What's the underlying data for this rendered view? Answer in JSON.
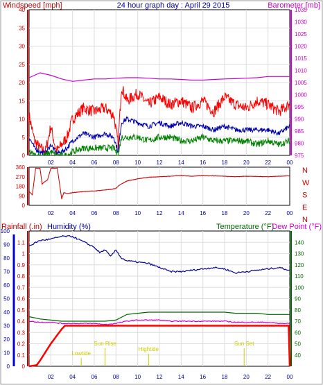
{
  "header": {
    "windspeed_label": "Windspeed [mph]",
    "title": "24 hour graph day : April 29 2015",
    "barometer_label": "Barometer [mb]"
  },
  "panel3": {
    "rainfall_label": "Rainfall (.in)",
    "humidity_label": "Humidity (%)",
    "temperature_label": "Temperature (°F)",
    "dewpoint_label": "Dew Point (°F)"
  },
  "colors": {
    "wind_gust": "#ff0000",
    "wind_avg": "#0000aa",
    "wind_low": "#008000",
    "barometer": "#cc00cc",
    "direction": "#cc0000",
    "humidity": "#000099",
    "temperature": "#006600",
    "dewpoint": "#cc00cc",
    "rainfall": "#ff0000",
    "tide": "#cccc00"
  },
  "chart_data": [
    {
      "name": "wind-barometer",
      "type": "line",
      "xlabel": "",
      "x_ticks": [
        "02",
        "04",
        "06",
        "08",
        "10",
        "12",
        "14",
        "16",
        "18",
        "20",
        "22",
        "00"
      ],
      "y_left": {
        "label": "Windspeed [mph]",
        "ticks": [
          0,
          5,
          10,
          15,
          20,
          25,
          30,
          35,
          40
        ],
        "ylim": [
          0,
          40
        ]
      },
      "y_right": {
        "label": "Barometer [mb]",
        "ticks": [
          975,
          980,
          985,
          990,
          995,
          1000,
          1005,
          1010,
          1015,
          1020,
          1025,
          1030,
          1035
        ],
        "ylim": [
          975,
          1035
        ]
      },
      "grid": true,
      "series": [
        {
          "name": "gust",
          "axis": "left",
          "x": [
            0,
            0.5,
            1,
            1.5,
            2,
            2.5,
            3,
            3.5,
            4,
            5,
            6,
            7,
            7.8,
            8.2,
            8.5,
            9,
            10,
            11,
            12,
            13,
            14,
            15,
            16,
            17,
            18,
            19,
            20,
            21,
            22,
            23,
            24
          ],
          "values": [
            11,
            4,
            2,
            1,
            8,
            1,
            3,
            5,
            10,
            13,
            12,
            13,
            11,
            3,
            19,
            15,
            17,
            14,
            16,
            14,
            15,
            13,
            15,
            12,
            16,
            14,
            13,
            15,
            14,
            12,
            14
          ]
        },
        {
          "name": "average",
          "axis": "left",
          "x": [
            0,
            0.5,
            1,
            1.5,
            2,
            2.5,
            3,
            3.5,
            4,
            5,
            6,
            7,
            7.8,
            8.2,
            8.5,
            9,
            10,
            11,
            12,
            13,
            14,
            15,
            16,
            17,
            18,
            19,
            20,
            21,
            22,
            23,
            24
          ],
          "values": [
            5,
            2,
            1,
            0.5,
            3,
            0.5,
            1,
            2,
            4,
            6,
            5,
            6,
            5,
            1,
            9,
            10,
            9,
            8,
            9,
            8,
            9,
            8,
            8,
            7,
            8,
            7,
            7,
            7,
            7,
            6,
            8
          ]
        },
        {
          "name": "low",
          "axis": "left",
          "x": [
            0,
            0.5,
            1,
            1.5,
            2,
            2.5,
            3,
            3.5,
            4,
            5,
            6,
            7,
            7.8,
            8.2,
            8.5,
            9,
            10,
            11,
            12,
            13,
            14,
            15,
            16,
            17,
            18,
            19,
            20,
            21,
            22,
            23,
            24
          ],
          "values": [
            1,
            0,
            0,
            0,
            1,
            0,
            0,
            0,
            1,
            2,
            2,
            2,
            2,
            0,
            5,
            5,
            5,
            4,
            5,
            5,
            4,
            4,
            5,
            4,
            4,
            4,
            4,
            3,
            4,
            3,
            4
          ]
        },
        {
          "name": "barometer",
          "axis": "right",
          "x": [
            0,
            1,
            2,
            3,
            4,
            5,
            6,
            7,
            8,
            9,
            10,
            11,
            12,
            13,
            14,
            15,
            16,
            17,
            18,
            19,
            20,
            21,
            22,
            23,
            24
          ],
          "values": [
            1007,
            1009,
            1008,
            1006.5,
            1005.5,
            1006,
            1006.5,
            1006.5,
            1006.8,
            1007,
            1007,
            1006.8,
            1006.5,
            1006.5,
            1006.3,
            1006,
            1006,
            1006.3,
            1006.5,
            1006.6,
            1006.8,
            1007,
            1007.5,
            1007.5,
            1007.5
          ]
        }
      ]
    },
    {
      "name": "wind-direction",
      "type": "line",
      "y_left": {
        "ticks": [
          0,
          90,
          180,
          270,
          360
        ],
        "ylim": [
          0,
          360
        ]
      },
      "y_right_labels": [
        "N",
        "W",
        "S",
        "E",
        "N"
      ],
      "x_ticks": [
        "02",
        "04",
        "06",
        "08",
        "10",
        "12",
        "14",
        "16",
        "18",
        "20",
        "22",
        "00"
      ],
      "series": [
        {
          "name": "direction",
          "x": [
            0,
            0.3,
            0.6,
            1,
            1.2,
            1.4,
            1.7,
            2,
            2.3,
            2.6,
            3,
            3.2,
            3.5,
            4,
            5,
            6,
            7,
            7.5,
            8,
            8.3,
            9,
            10,
            11,
            12,
            13,
            14,
            15,
            16,
            17,
            18,
            19,
            20,
            21,
            22,
            23,
            24
          ],
          "values": [
            130,
            100,
            350,
            350,
            200,
            220,
            240,
            350,
            350,
            350,
            60,
            120,
            110,
            120,
            130,
            135,
            145,
            150,
            160,
            190,
            230,
            250,
            265,
            270,
            275,
            280,
            275,
            280,
            278,
            275,
            270,
            275,
            272,
            270,
            275,
            278
          ]
        }
      ]
    },
    {
      "name": "humidity-temperature-rain",
      "type": "line",
      "x_ticks": [
        "02",
        "04",
        "06",
        "08",
        "10",
        "12",
        "14",
        "16",
        "18",
        "20",
        "22",
        "00"
      ],
      "y_left_rain": {
        "label": "Rainfall (.in)",
        "ticks": [
          0,
          0.1,
          0.2,
          0.3,
          0.4,
          0.5,
          0.6,
          0.7,
          0.8,
          0.9,
          1,
          1.1
        ],
        "ylim": [
          0,
          1.2
        ]
      },
      "y_left_humidity": {
        "label": "Humidity (%)",
        "ticks": [
          0,
          10,
          20,
          30,
          40,
          50,
          60,
          70,
          80,
          90,
          100
        ],
        "ylim": [
          0,
          100
        ]
      },
      "y_right": {
        "label": "Temperature (°F)",
        "ticks": [
          40,
          50,
          60,
          70,
          80,
          90,
          100,
          110,
          120,
          130,
          140
        ],
        "ylim": [
          30,
          150
        ]
      },
      "annotations": [
        "Lowtide",
        "Sun Rise",
        "Hightide",
        "Sun Set"
      ],
      "series": [
        {
          "name": "humidity",
          "axis": "humidity",
          "x": [
            0,
            1,
            2,
            3,
            4,
            5,
            6,
            6.5,
            7,
            7.5,
            8,
            8.5,
            9,
            10,
            11,
            12,
            13,
            14,
            15,
            16,
            17,
            18,
            19,
            20,
            21,
            22,
            23,
            24
          ],
          "values": [
            89,
            93,
            94,
            96,
            96,
            92,
            88,
            84,
            86,
            81,
            86,
            80,
            78,
            77,
            76,
            73,
            70,
            70,
            71,
            72,
            73,
            72,
            69,
            70,
            71,
            72,
            73,
            71
          ]
        },
        {
          "name": "temperature",
          "axis": "right",
          "x": [
            0,
            1,
            2,
            3,
            4,
            5,
            6,
            7,
            8,
            9,
            10,
            11,
            12,
            13,
            14,
            15,
            16,
            17,
            18,
            19,
            20,
            21,
            22,
            23,
            24
          ],
          "values": [
            74,
            72,
            71,
            70,
            70,
            70,
            70,
            70,
            71,
            76,
            77,
            78,
            78,
            78,
            78,
            78,
            78,
            78,
            78,
            77,
            77,
            77,
            76,
            76,
            76
          ]
        },
        {
          "name": "dewpoint",
          "axis": "right",
          "x": [
            0,
            1,
            2,
            3,
            4,
            5,
            6,
            7,
            8,
            9,
            10,
            11,
            12,
            13,
            14,
            15,
            16,
            17,
            18,
            19,
            20,
            21,
            22,
            23,
            24
          ],
          "values": [
            70,
            69,
            69,
            68,
            68,
            68,
            68,
            67,
            68,
            70,
            71,
            71,
            71,
            70,
            70,
            70,
            70,
            70,
            70,
            69,
            69,
            69,
            69,
            68,
            68
          ]
        },
        {
          "name": "rainfall",
          "axis": "rain",
          "x": [
            0,
            0.7,
            1,
            2,
            3,
            3.3,
            4,
            6,
            8,
            10,
            12,
            14,
            16,
            18,
            20,
            22,
            23.9,
            24
          ],
          "values": [
            0,
            0.01,
            0.05,
            0.2,
            0.33,
            0.36,
            0.36,
            0.36,
            0.36,
            0.36,
            0.36,
            0.36,
            0.36,
            0.36,
            0.36,
            0.36,
            0.36,
            0
          ]
        }
      ]
    }
  ]
}
